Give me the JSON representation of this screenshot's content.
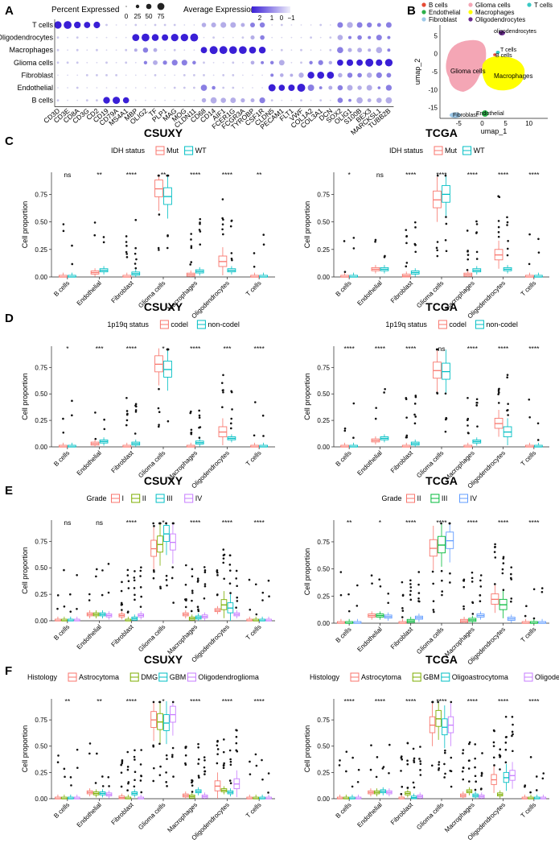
{
  "panel_letters": [
    "A",
    "B",
    "C",
    "D",
    "E",
    "F"
  ],
  "colors": {
    "group2_red": "#F8766D",
    "group2_teal": "#00BFC4",
    "grade_I": "#F8766D",
    "grade_II": "#7CAE00",
    "grade_III": "#00BFC4",
    "grade_IV": "#C77CFF",
    "tcga_II": "#F8766D",
    "tcga_III": "#00BA38",
    "tcga_IV": "#619CFF",
    "dot_high": "#3a1fd6",
    "dot_low": "#d7d5ef",
    "umap_glioma": "#F4A6B5",
    "umap_macro": "#FFFF00",
    "umap_endo": "#2BB04A",
    "umap_fibro": "#9CC8E8",
    "umap_oligo": "#6A2C8F",
    "umap_t": "#39C9C4",
    "umap_b": "#E64B35"
  },
  "panelA": {
    "legend_pct_title": "Percent Expressed",
    "legend_pct_values": [
      "0",
      "25",
      "50",
      "75"
    ],
    "legend_avg_title": "Average Expression",
    "legend_avg_ticks": [
      "2",
      "1",
      "0",
      "−1"
    ],
    "rows": [
      "T cells",
      "Oligodendrocytes",
      "Macrophages",
      "Glioma cells",
      "Fibroblast",
      "Endothelial",
      "B cells"
    ],
    "genes": [
      "CD3D",
      "CD3E",
      "CD8A",
      "CD3G",
      "CD2",
      "CD19",
      "CD79A",
      "MS4A1",
      "MBP",
      "OLIG2",
      "TF",
      "PLP1",
      "MAG",
      "MOG",
      "CLDN11",
      "CD68",
      "CD14",
      "AIF1",
      "FCER1G",
      "FCGR3A",
      "TYROBP",
      "CSF1R",
      "CLDN5",
      "PECAM1",
      "FLT1",
      "VWF",
      "COL1A2",
      "COL3A1",
      "DCN",
      "SOX2",
      "OLIG1",
      "S100B",
      "BEX3",
      "MARCKSL1",
      "TUBB2B"
    ]
  },
  "panelB": {
    "legend": [
      "B cells",
      "Endothelial",
      "Fibroblast",
      "Glioma cells",
      "Macrophages",
      "Oligodendrocytes",
      "T cells"
    ],
    "cluster_labels": [
      "oligodendrocytes",
      "T cells",
      "B cells",
      "Glioma cells",
      "Macrophages",
      "Fibroblast",
      "Endothelial"
    ],
    "xlabel": "umap_1",
    "ylabel": "umap_2",
    "xticks": [
      "-5",
      "0",
      "5",
      "10"
    ],
    "yticks": [
      "5",
      "0",
      "-5",
      "-10",
      "-15"
    ]
  },
  "chart_data": [
    {
      "panel": "C",
      "type": "box",
      "title": "CSUXY",
      "legend_title": "IDH status",
      "legend": [
        "Mut",
        "WT"
      ],
      "ylabel": "Cell proportion",
      "yticks": [
        "0.00",
        "0.25",
        "0.50",
        "0.75"
      ],
      "ylim": [
        0,
        0.95
      ],
      "categories": [
        "B cells",
        "Endothelial",
        "Fibroblast",
        "Glioma cells",
        "Macrophages",
        "Oligodendrocytes",
        "T cells"
      ],
      "signif": [
        "ns",
        "**",
        "****",
        "**",
        "****",
        "****",
        "**"
      ],
      "medians": [
        [
          0.0,
          0.0
        ],
        [
          0.04,
          0.06
        ],
        [
          0.0,
          0.03
        ],
        [
          0.8,
          0.73
        ],
        [
          0.02,
          0.05
        ],
        [
          0.14,
          0.06
        ],
        [
          0.0,
          0.0
        ]
      ]
    },
    {
      "panel": "C",
      "type": "box",
      "title": "TCGA",
      "legend_title": "IDH status",
      "legend": [
        "Mut",
        "WT"
      ],
      "ylabel": "Cell proportion",
      "yticks": [
        "0.00",
        "0.25",
        "0.50",
        "0.75"
      ],
      "ylim": [
        0,
        0.95
      ],
      "categories": [
        "B cells",
        "Endothelial",
        "Fibroblast",
        "Glioma cells",
        "Macrophages",
        "Oligodendrocytes",
        "T cells"
      ],
      "signif": [
        "*",
        "ns",
        "****",
        "****",
        "****",
        "****",
        "****"
      ],
      "medians": [
        [
          0.0,
          0.0
        ],
        [
          0.07,
          0.07
        ],
        [
          0.01,
          0.04
        ],
        [
          0.7,
          0.75
        ],
        [
          0.02,
          0.06
        ],
        [
          0.2,
          0.07
        ],
        [
          0.0,
          0.0
        ]
      ]
    },
    {
      "panel": "D",
      "type": "box",
      "title": "CSUXY",
      "legend_title": "1p19q status",
      "legend": [
        "codel",
        "non-codel"
      ],
      "ylabel": "Cell proportion",
      "yticks": [
        "0.00",
        "0.25",
        "0.50",
        "0.75"
      ],
      "ylim": [
        0,
        0.95
      ],
      "categories": [
        "B cells",
        "Endothelial",
        "Fibroblast",
        "Glioma cells",
        "Macrophages",
        "Oligodendrocytes",
        "T cells"
      ],
      "signif": [
        "*",
        "***",
        "****",
        "*",
        "****",
        "***",
        "****"
      ],
      "medians": [
        [
          0.0,
          0.0
        ],
        [
          0.03,
          0.05
        ],
        [
          0.0,
          0.03
        ],
        [
          0.78,
          0.73
        ],
        [
          0.0,
          0.04
        ],
        [
          0.14,
          0.08
        ],
        [
          0.0,
          0.0
        ]
      ]
    },
    {
      "panel": "D",
      "type": "box",
      "title": "TCGA",
      "legend_title": "1p19q status",
      "legend": [
        "codel",
        "non-codel"
      ],
      "ylabel": "Cell proportion",
      "yticks": [
        "0.00",
        "0.25",
        "0.50",
        "0.75"
      ],
      "ylim": [
        0,
        0.95
      ],
      "categories": [
        "B cells",
        "Endothelial",
        "Fibroblast",
        "Glioma cells",
        "Macrophages",
        "Oligodendrocytes",
        "T cells"
      ],
      "signif": [
        "****",
        "****",
        "****",
        "ns",
        "****",
        "****",
        "****"
      ],
      "medians": [
        [
          0.0,
          0.0
        ],
        [
          0.06,
          0.08
        ],
        [
          0.0,
          0.03
        ],
        [
          0.72,
          0.71
        ],
        [
          0.0,
          0.05
        ],
        [
          0.22,
          0.14
        ],
        [
          0.0,
          0.0
        ]
      ]
    },
    {
      "panel": "E",
      "type": "box",
      "title": "CSUXY",
      "legend_title": "Grade",
      "legend": [
        "I",
        "II",
        "III",
        "IV"
      ],
      "ylabel": "Cell proportion",
      "yticks": [
        "0.00",
        "0.25",
        "0.50",
        "0.75"
      ],
      "ylim": [
        0,
        0.95
      ],
      "categories": [
        "B cells",
        "Endothelial",
        "Fibroblast",
        "Glioma cells",
        "Macrophages",
        "Oligodendrocytes",
        "T cells"
      ],
      "signif": [
        "ns",
        "ns",
        "****",
        "*",
        "****",
        "****",
        "****"
      ],
      "medians": [
        [
          0,
          0,
          0,
          0
        ],
        [
          0.06,
          0.06,
          0.06,
          0.05
        ],
        [
          0.05,
          0.0,
          0.02,
          0.05
        ],
        [
          0.68,
          0.72,
          0.82,
          0.74
        ],
        [
          0.06,
          0.02,
          0.03,
          0.04
        ],
        [
          0.1,
          0.15,
          0.12,
          0.06
        ],
        [
          0,
          0,
          0,
          0
        ]
      ]
    },
    {
      "panel": "E",
      "type": "box",
      "title": "TCGA",
      "legend_title": "Grade",
      "legend": [
        "II",
        "III",
        "IV"
      ],
      "ylabel": "Cell proportion",
      "yticks": [
        "0.00",
        "0.25",
        "0.50",
        "0.75"
      ],
      "ylim": [
        0,
        0.95
      ],
      "categories": [
        "B cells",
        "Endothelial",
        "Fibroblast",
        "Glioma cells",
        "Macrophages",
        "Oligodendrocytes",
        "T cells"
      ],
      "signif": [
        "**",
        "*",
        "****",
        "****",
        "****",
        "****",
        "****"
      ],
      "medians": [
        [
          0,
          0,
          0
        ],
        [
          0.07,
          0.07,
          0.06
        ],
        [
          0.0,
          0.02,
          0.05
        ],
        [
          0.69,
          0.72,
          0.76
        ],
        [
          0.02,
          0.03,
          0.07
        ],
        [
          0.22,
          0.17,
          0.04
        ],
        [
          0,
          0,
          0
        ]
      ]
    },
    {
      "panel": "F",
      "type": "box",
      "title": "CSUXY",
      "legend_title": "Histology",
      "legend": [
        "Astrocytoma",
        "DMG",
        "GBM",
        "Oligodendroglioma"
      ],
      "ylabel": "Cell proportion",
      "yticks": [
        "0.00",
        "0.25",
        "0.50",
        "0.75"
      ],
      "ylim": [
        0,
        0.95
      ],
      "categories": [
        "B cells",
        "Endothelial",
        "Fibroblast",
        "Glioma cells",
        "Macrophages",
        "Oligodendrocytes",
        "T cells"
      ],
      "signif": [
        "**",
        "**",
        "****",
        "*",
        "****",
        "****",
        "****"
      ],
      "medians": [
        [
          0,
          0,
          0,
          0
        ],
        [
          0.06,
          0.05,
          0.05,
          0.04
        ],
        [
          0.01,
          0.0,
          0.05,
          0.0
        ],
        [
          0.75,
          0.73,
          0.72,
          0.8
        ],
        [
          0.03,
          0.02,
          0.07,
          0.02
        ],
        [
          0.12,
          0.08,
          0.06,
          0.14
        ],
        [
          0,
          0,
          0,
          0
        ]
      ]
    },
    {
      "panel": "F",
      "type": "box",
      "title": "TCGA",
      "legend_title": "Histology",
      "legend": [
        "Astrocytoma",
        "GBM",
        "Oligoastrocytoma",
        "Oligodendroglioma"
      ],
      "ylabel": "Cell proportion",
      "yticks": [
        "0.00",
        "0.25",
        "0.50",
        "0.75"
      ],
      "ylim": [
        0,
        0.95
      ],
      "categories": [
        "B cells",
        "Endothelial",
        "Fibroblast",
        "Glioma cells",
        "Macrophages",
        "Oligodendrocytes",
        "T cells"
      ],
      "signif": [
        "****",
        "****",
        "****",
        "****",
        "****",
        "****",
        "****"
      ],
      "medians": [
        [
          0,
          0,
          0,
          0
        ],
        [
          0.06,
          0.06,
          0.07,
          0.06
        ],
        [
          0.0,
          0.05,
          0.01,
          0.02
        ],
        [
          0.7,
          0.76,
          0.68,
          0.7
        ],
        [
          0.03,
          0.07,
          0.03,
          0.02
        ],
        [
          0.18,
          0.04,
          0.2,
          0.22
        ],
        [
          0,
          0,
          0,
          0
        ]
      ]
    }
  ]
}
